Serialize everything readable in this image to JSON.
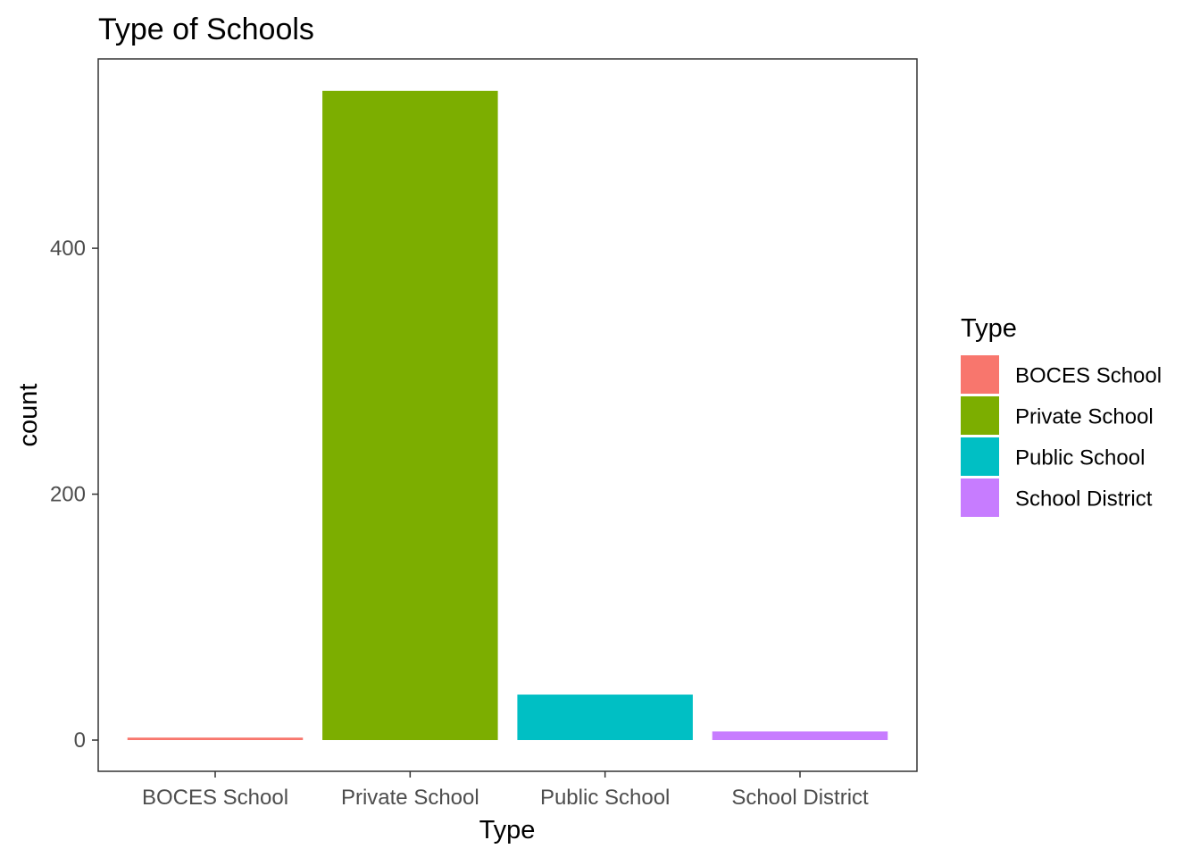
{
  "chart_data": {
    "type": "bar",
    "title": "Type of Schools",
    "xlabel": "Type",
    "ylabel": "count",
    "categories": [
      "BOCES School",
      "Private School",
      "Public School",
      "School District"
    ],
    "values": [
      2,
      528,
      37,
      7
    ],
    "colors": [
      "#F8766D",
      "#7CAE00",
      "#00BFC4",
      "#C77CFF"
    ],
    "ylim": [
      -25.4,
      554
    ],
    "yticks": [
      0,
      200,
      400
    ],
    "ytick_labels": [
      "0",
      "200",
      "400"
    ],
    "grid": false,
    "legend": {
      "title": "Type",
      "position": "right",
      "entries": [
        "BOCES School",
        "Private School",
        "Public School",
        "School District"
      ]
    }
  }
}
